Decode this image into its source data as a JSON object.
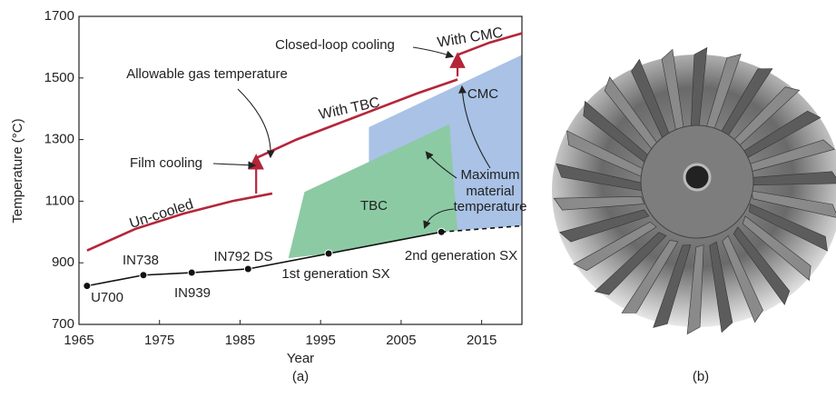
{
  "chart_data": {
    "type": "line",
    "x_label": "Year",
    "y_label": "Temperature (°C)",
    "caption": "(a)",
    "xlim": [
      1965,
      2020
    ],
    "xticks": [
      1965,
      1975,
      1985,
      1995,
      2005,
      2015
    ],
    "ylim": [
      700,
      1700
    ],
    "yticks": [
      700,
      900,
      1100,
      1300,
      1500,
      1700
    ],
    "areas": [
      {
        "name": "CMC",
        "color": "#a9c2e6",
        "x": [
          2001,
          2020,
          2020,
          2012,
          2001
        ],
        "values": [
          1340,
          1575,
          1020,
          1005,
          1000
        ]
      },
      {
        "name": "TBC",
        "color": "#8ccaa4",
        "x": [
          1991,
          1993,
          2011,
          2012,
          2010,
          1996
        ],
        "values": [
          915,
          1130,
          1350,
          1005,
          1000,
          930
        ]
      }
    ],
    "series": [
      {
        "name": "Un-cooled",
        "color": "#b5253a",
        "x": [
          1966,
          1972,
          1978,
          1984,
          1989
        ],
        "values": [
          940,
          1010,
          1060,
          1100,
          1125
        ]
      },
      {
        "name": "With TBC",
        "color": "#b5253a",
        "x": [
          1987,
          1992,
          1997,
          2002,
          2007,
          2012
        ],
        "values": [
          1240,
          1300,
          1350,
          1400,
          1450,
          1495
        ]
      },
      {
        "name": "With CMC",
        "color": "#b5253a",
        "x": [
          2012,
          2016,
          2020
        ],
        "values": [
          1575,
          1615,
          1645
        ]
      },
      {
        "color": "#111111",
        "markers": true,
        "x": [
          1966,
          1973,
          1979,
          1986,
          1996,
          2010
        ],
        "values": [
          825,
          860,
          868,
          880,
          930,
          1000
        ],
        "point_labels": [
          "U700",
          "IN738",
          "IN939",
          "IN792 DS",
          "1st generation SX",
          "2nd generation SX"
        ]
      },
      {
        "color": "#111111",
        "dash": true,
        "x": [
          2010,
          2020
        ],
        "values": [
          1000,
          1020
        ]
      }
    ],
    "arrows": [
      {
        "x": 1987,
        "values": [
          1125,
          1240
        ]
      },
      {
        "x": 2012,
        "values": [
          1505,
          1570
        ]
      }
    ],
    "annotations": [
      "Allowable gas temperature",
      "Film cooling",
      "Closed-loop cooling",
      "Maximum",
      "material",
      "temperature"
    ]
  },
  "photo": {
    "caption": "(b)"
  }
}
